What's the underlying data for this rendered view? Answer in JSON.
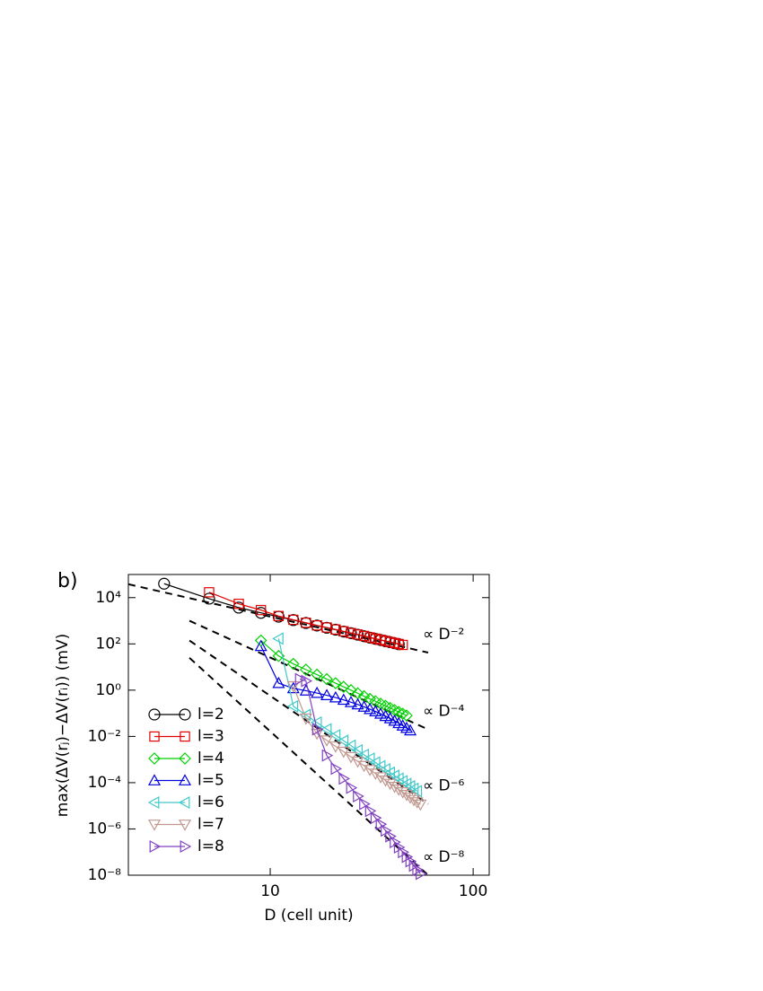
{
  "chart_data": {
    "type": "line",
    "panel_label": "b)",
    "x_label": "D   (cell unit)",
    "y_label": "max(ΔV(rⱼ)−ΔV(rᵢ))  (mV)",
    "xscale": "log",
    "yscale": "log",
    "xlim": [
      2,
      120
    ],
    "ylim": [
      1e-08,
      100000
    ],
    "xticks": [
      10,
      100
    ],
    "yticks": [
      {
        "value": 1e-08,
        "label": "10⁻⁸"
      },
      {
        "value": 1e-06,
        "label": "10⁻⁶"
      },
      {
        "value": 0.0001,
        "label": "10⁻⁴"
      },
      {
        "value": 0.01,
        "label": "10⁻²"
      },
      {
        "value": 1,
        "label": "10⁰"
      },
      {
        "value": 100,
        "label": "10²"
      },
      {
        "value": 10000,
        "label": "10⁴"
      }
    ],
    "legend": "left",
    "series": [
      {
        "name": "l=2",
        "color": "#000000",
        "marker": "circle",
        "x": [
          3,
          5,
          7,
          9,
          11,
          13,
          15,
          17,
          19,
          21,
          23,
          25,
          27,
          29,
          31,
          33,
          35,
          37,
          39,
          41,
          43
        ],
        "values": [
          40000,
          9000,
          3700,
          2200,
          1500,
          1070,
          800,
          620,
          500,
          410,
          340,
          290,
          250,
          215,
          187,
          165,
          147,
          131,
          118,
          107,
          97
        ]
      },
      {
        "name": "l=3",
        "color": "#e00000",
        "marker": "square",
        "x": [
          5,
          7,
          9,
          11,
          13,
          15,
          17,
          19,
          21,
          23,
          25,
          27,
          29,
          31,
          33,
          35,
          37,
          39,
          41,
          43,
          45
        ],
        "values": [
          17000,
          5400,
          2900,
          1600,
          1100,
          820,
          630,
          510,
          420,
          350,
          295,
          255,
          220,
          190,
          168,
          150,
          134,
          120,
          109,
          99,
          90
        ]
      },
      {
        "name": "l=4",
        "color": "#00d000",
        "marker": "diamond",
        "x": [
          9,
          11,
          13,
          15,
          17,
          19,
          21,
          23,
          25,
          27,
          29,
          31,
          33,
          35,
          37,
          39,
          41,
          43,
          45,
          47
        ],
        "values": [
          140,
          30,
          13.7,
          7.7,
          4.67,
          2.99,
          2.0,
          1.39,
          1.0,
          0.73,
          0.55,
          0.42,
          0.33,
          0.26,
          0.21,
          0.169,
          0.138,
          0.114,
          0.095,
          0.08
        ]
      },
      {
        "name": "l=5",
        "color": "#0000e0",
        "marker": "triangle-up",
        "x": [
          9,
          11,
          13,
          15,
          17,
          19,
          21,
          23,
          25,
          27,
          29,
          31,
          33,
          35,
          37,
          39,
          41,
          43,
          45,
          47,
          49
        ],
        "values": [
          80,
          2.0,
          1.2,
          0.95,
          0.75,
          0.6,
          0.48,
          0.38,
          0.3,
          0.24,
          0.19,
          0.15,
          0.12,
          0.095,
          0.075,
          0.06,
          0.047,
          0.037,
          0.029,
          0.023,
          0.018
        ]
      },
      {
        "name": "l=6",
        "color": "#40c8c8",
        "marker": "triangle-left",
        "x": [
          11,
          13,
          15,
          17,
          19,
          21,
          23,
          25,
          27,
          29,
          31,
          33,
          35,
          37,
          39,
          41,
          43,
          45,
          47,
          49,
          51,
          53
        ],
        "values": [
          170,
          0.2,
          0.085,
          0.04,
          0.0205,
          0.0112,
          0.0065,
          0.004,
          0.0025,
          0.0016,
          0.0011,
          0.00075,
          0.00052,
          0.00038,
          0.00027,
          0.0002,
          0.00015,
          0.000116,
          8.9e-05,
          7e-05,
          5.5e-05,
          4.3e-05
        ]
      },
      {
        "name": "l=7",
        "color": "#c09890",
        "marker": "triangle-down",
        "x": [
          13,
          15,
          17,
          19,
          21,
          23,
          25,
          27,
          29,
          31,
          33,
          35,
          37,
          39,
          41,
          43,
          45,
          47,
          49,
          51,
          53,
          55
        ],
        "values": [
          1.5,
          0.06,
          0.0133,
          0.0068,
          0.0037,
          0.0022,
          0.0013,
          0.00083,
          0.00054,
          0.00036,
          0.00025,
          0.000174,
          0.000125,
          9.1e-05,
          6.7e-05,
          5.1e-05,
          3.9e-05,
          3e-05,
          2.3e-05,
          1.8e-05,
          1.44e-05,
          1.15e-05
        ]
      },
      {
        "name": "l=8",
        "color": "#8040c0",
        "marker": "triangle-right",
        "x": [
          14,
          15,
          17,
          19,
          21,
          23,
          25,
          27,
          29,
          31,
          33,
          35,
          37,
          39,
          41,
          43,
          45,
          47,
          49,
          51,
          53,
          55
        ],
        "values": [
          3,
          2.5,
          0.02,
          0.0015,
          0.0004,
          0.00015,
          6e-05,
          2.6e-05,
          1.2e-05,
          6e-06,
          3e-06,
          1.6e-06,
          8.5e-07,
          4.8e-07,
          2.7e-07,
          1.6e-07,
          1e-07,
          6.2e-08,
          4e-08,
          2.6e-08,
          1.7e-08,
          1.15e-08
        ]
      }
    ],
    "reference_lines": [
      {
        "label": "∝ D⁻²",
        "x": [
          2,
          60
        ],
        "values": [
          38000,
          42
        ]
      },
      {
        "label": "∝ D⁻⁴",
        "x": [
          4,
          60
        ],
        "values": [
          1000,
          0.02
        ]
      },
      {
        "label": "∝ D⁻⁶",
        "x": [
          4,
          60
        ],
        "values": [
          140,
          1.2e-05
        ]
      },
      {
        "label": "∝ D⁻⁸",
        "x": [
          4,
          60
        ],
        "values": [
          25,
          1e-08
        ]
      }
    ]
  }
}
